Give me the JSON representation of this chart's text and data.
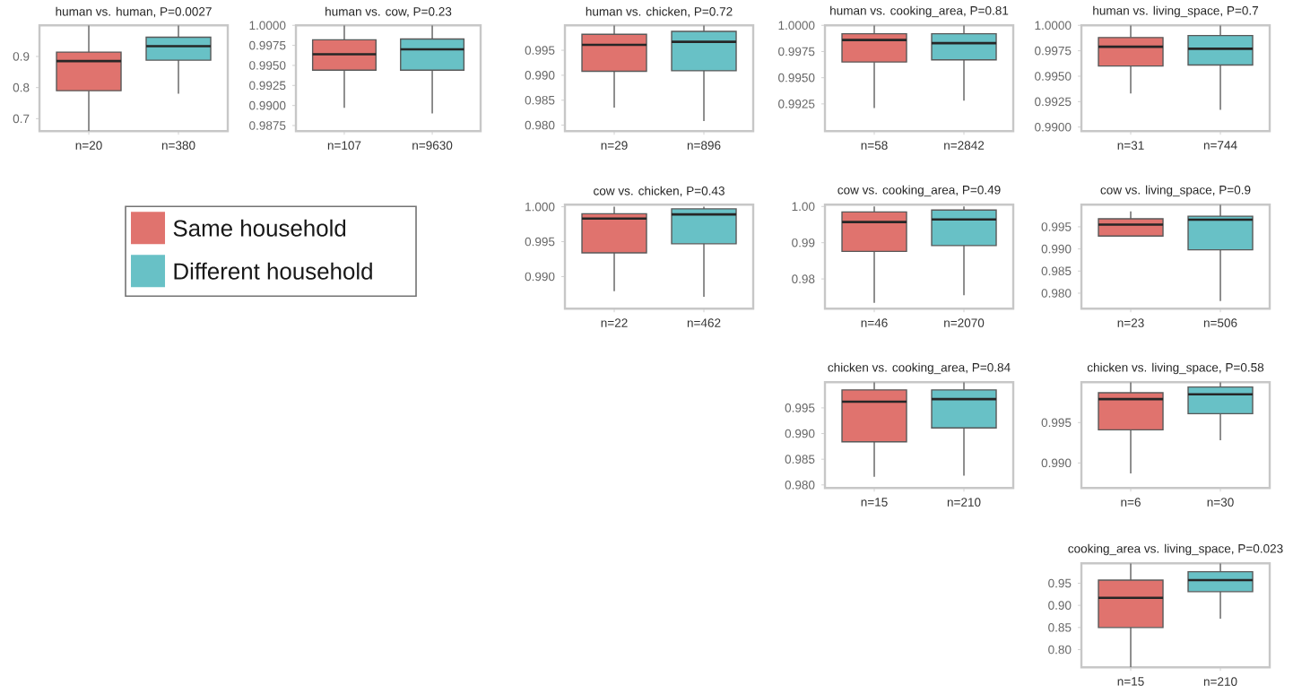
{
  "chart_data": [
    {
      "type": "box",
      "title": "human vs. human, P=0.0027",
      "categories": [
        "n=20",
        "n=380"
      ],
      "ylim": [
        0.66,
        1.0
      ],
      "legend": "bottom",
      "yticks": [
        {
          "value": 0.7,
          "label": "0.7"
        },
        {
          "value": 0.8,
          "label": "0.8"
        },
        {
          "value": 0.9,
          "label": "0.9"
        }
      ],
      "series": [
        {
          "name": "Same household",
          "color": "#e0736e",
          "boxes": [
            {
              "low": 0.66,
              "q1": 0.79,
              "median": 0.885,
              "q3": 0.914,
              "high": 1.0
            },
            null
          ]
        },
        {
          "name": "Different household",
          "color": "#68c1c6",
          "boxes": [
            null,
            {
              "low": 0.78,
              "q1": 0.888,
              "median": 0.933,
              "q3": 0.962,
              "high": 1.0
            }
          ]
        }
      ]
    },
    {
      "type": "box",
      "title": "human vs. cow, P=0.23",
      "categories": [
        "n=107",
        "n=9630"
      ],
      "ylim": [
        0.9868,
        1.0
      ],
      "yticks": [
        {
          "value": 0.9875,
          "label": "0.9875"
        },
        {
          "value": 0.99,
          "label": "0.9900"
        },
        {
          "value": 0.9925,
          "label": "0.9925"
        },
        {
          "value": 0.995,
          "label": "0.9950"
        },
        {
          "value": 0.9975,
          "label": "0.9975"
        },
        {
          "value": 1.0,
          "label": "1.0000"
        }
      ],
      "series": [
        {
          "color": "#e0736e",
          "boxes": [
            {
              "low": 0.9897,
              "q1": 0.9944,
              "median": 0.9964,
              "q3": 0.9982,
              "high": 1.0
            },
            null
          ]
        },
        {
          "color": "#68c1c6",
          "boxes": [
            null,
            {
              "low": 0.989,
              "q1": 0.9944,
              "median": 0.997,
              "q3": 0.9983,
              "high": 1.0
            }
          ]
        }
      ]
    },
    {
      "type": "box",
      "title": "human vs. chicken, P=0.72",
      "categories": [
        "n=29",
        "n=896"
      ],
      "ylim": [
        0.9788,
        1.0
      ],
      "yticks": [
        {
          "value": 0.98,
          "label": "0.980"
        },
        {
          "value": 0.985,
          "label": "0.985"
        },
        {
          "value": 0.99,
          "label": "0.990"
        },
        {
          "value": 0.995,
          "label": "0.995"
        }
      ],
      "series": [
        {
          "color": "#e0736e",
          "boxes": [
            {
              "low": 0.9835,
              "q1": 0.9908,
              "median": 0.9961,
              "q3": 0.9982,
              "high": 1.0
            },
            null
          ]
        },
        {
          "color": "#68c1c6",
          "boxes": [
            null,
            {
              "low": 0.9808,
              "q1": 0.9909,
              "median": 0.9967,
              "q3": 0.9988,
              "high": 1.0
            }
          ]
        }
      ]
    },
    {
      "type": "box",
      "title": "human vs. cooking_area, P=0.81",
      "categories": [
        "n=58",
        "n=2842"
      ],
      "ylim": [
        0.9899,
        1.0
      ],
      "yticks": [
        {
          "value": 0.9925,
          "label": "0.9925"
        },
        {
          "value": 0.995,
          "label": "0.9950"
        },
        {
          "value": 0.9975,
          "label": "0.9975"
        },
        {
          "value": 1.0,
          "label": "1.0000"
        }
      ],
      "series": [
        {
          "color": "#e0736e",
          "boxes": [
            {
              "low": 0.9921,
              "q1": 0.9965,
              "median": 0.9986,
              "q3": 0.9992,
              "high": 1.0
            },
            null
          ]
        },
        {
          "color": "#68c1c6",
          "boxes": [
            null,
            {
              "low": 0.9928,
              "q1": 0.9967,
              "median": 0.9983,
              "q3": 0.9992,
              "high": 1.0
            }
          ]
        }
      ]
    },
    {
      "type": "box",
      "title": "human vs. living_space, P=0.7",
      "categories": [
        "n=31",
        "n=744"
      ],
      "ylim": [
        0.9896,
        1.0
      ],
      "yticks": [
        {
          "value": 0.99,
          "label": "0.9900"
        },
        {
          "value": 0.9925,
          "label": "0.9925"
        },
        {
          "value": 0.995,
          "label": "0.9950"
        },
        {
          "value": 0.9975,
          "label": "0.9975"
        },
        {
          "value": 1.0,
          "label": "1.0000"
        }
      ],
      "series": [
        {
          "color": "#e0736e",
          "boxes": [
            {
              "low": 0.9933,
              "q1": 0.996,
              "median": 0.9979,
              "q3": 0.9988,
              "high": 1.0
            },
            null
          ]
        },
        {
          "color": "#68c1c6",
          "boxes": [
            null,
            {
              "low": 0.9917,
              "q1": 0.9961,
              "median": 0.9977,
              "q3": 0.999,
              "high": 1.0
            }
          ]
        }
      ]
    },
    {
      "type": "box",
      "title": "cow vs. chicken, P=0.43",
      "categories": [
        "n=22",
        "n=462"
      ],
      "ylim": [
        0.9854,
        1.0003
      ],
      "yticks": [
        {
          "value": 0.99,
          "label": "0.990"
        },
        {
          "value": 0.995,
          "label": "0.995"
        },
        {
          "value": 1.0,
          "label": "1.000"
        }
      ],
      "series": [
        {
          "color": "#e0736e",
          "boxes": [
            {
              "low": 0.9879,
              "q1": 0.9934,
              "median": 0.9983,
              "q3": 0.999,
              "high": 1.0
            },
            null
          ]
        },
        {
          "color": "#68c1c6",
          "boxes": [
            null,
            {
              "low": 0.9871,
              "q1": 0.9947,
              "median": 0.9989,
              "q3": 0.9997,
              "high": 1.0
            }
          ]
        }
      ]
    },
    {
      "type": "box",
      "title": "cow vs. cooking_area, P=0.49",
      "categories": [
        "n=46",
        "n=2070"
      ],
      "ylim": [
        0.9718,
        1.0005
      ],
      "yticks": [
        {
          "value": 0.98,
          "label": "0.98"
        },
        {
          "value": 0.99,
          "label": "0.99"
        },
        {
          "value": 1.0,
          "label": "1.00"
        }
      ],
      "series": [
        {
          "color": "#e0736e",
          "boxes": [
            {
              "low": 0.9734,
              "q1": 0.9876,
              "median": 0.9957,
              "q3": 0.9985,
              "high": 1.0
            },
            null
          ]
        },
        {
          "color": "#68c1c6",
          "boxes": [
            null,
            {
              "low": 0.9755,
              "q1": 0.9892,
              "median": 0.9964,
              "q3": 0.999,
              "high": 1.0
            }
          ]
        }
      ]
    },
    {
      "type": "box",
      "title": "cow vs. living_space, P=0.9",
      "categories": [
        "n=23",
        "n=506"
      ],
      "ylim": [
        0.9765,
        1.0
      ],
      "yticks": [
        {
          "value": 0.98,
          "label": "0.980"
        },
        {
          "value": 0.985,
          "label": "0.985"
        },
        {
          "value": 0.99,
          "label": "0.990"
        },
        {
          "value": 0.995,
          "label": "0.995"
        }
      ],
      "series": [
        {
          "color": "#e0736e",
          "boxes": [
            {
              "low": 0.9928,
              "q1": 0.9929,
              "median": 0.9955,
              "q3": 0.9968,
              "high": 0.9985
            },
            null
          ]
        },
        {
          "color": "#68c1c6",
          "boxes": [
            null,
            {
              "low": 0.9782,
              "q1": 0.9898,
              "median": 0.9966,
              "q3": 0.9974,
              "high": 1.0
            }
          ]
        }
      ]
    },
    {
      "type": "box",
      "title": "chicken vs. cooking_area, P=0.84",
      "categories": [
        "n=15",
        "n=210"
      ],
      "ylim": [
        0.9794,
        1.0
      ],
      "yticks": [
        {
          "value": 0.98,
          "label": "0.980"
        },
        {
          "value": 0.985,
          "label": "0.985"
        },
        {
          "value": 0.99,
          "label": "0.990"
        },
        {
          "value": 0.995,
          "label": "0.995"
        }
      ],
      "series": [
        {
          "color": "#e0736e",
          "boxes": [
            {
              "low": 0.9816,
              "q1": 0.9884,
              "median": 0.9962,
              "q3": 0.9985,
              "high": 1.0
            },
            null
          ]
        },
        {
          "color": "#68c1c6",
          "boxes": [
            null,
            {
              "low": 0.9818,
              "q1": 0.9911,
              "median": 0.9967,
              "q3": 0.9985,
              "high": 1.0
            }
          ]
        }
      ]
    },
    {
      "type": "box",
      "title": "chicken vs. living_space, P=0.58",
      "categories": [
        "n=6",
        "n=30"
      ],
      "ylim": [
        0.9869,
        1.0
      ],
      "yticks": [
        {
          "value": 0.99,
          "label": "0.990"
        },
        {
          "value": 0.995,
          "label": "0.995"
        }
      ],
      "series": [
        {
          "color": "#e0736e",
          "boxes": [
            {
              "low": 0.9887,
              "q1": 0.9941,
              "median": 0.9979,
              "q3": 0.9987,
              "high": 1.0
            },
            null
          ]
        },
        {
          "color": "#68c1c6",
          "boxes": [
            null,
            {
              "low": 0.9928,
              "q1": 0.9961,
              "median": 0.9985,
              "q3": 0.9994,
              "high": 1.0
            }
          ]
        }
      ]
    },
    {
      "type": "box",
      "title": "cooking_area vs. living_space, P=0.023",
      "categories": [
        "n=15",
        "n=210"
      ],
      "ylim": [
        0.76,
        0.995
      ],
      "yticks": [
        {
          "value": 0.8,
          "label": "0.80"
        },
        {
          "value": 0.85,
          "label": "0.85"
        },
        {
          "value": 0.9,
          "label": "0.90"
        },
        {
          "value": 0.95,
          "label": "0.95"
        }
      ],
      "series": [
        {
          "color": "#e0736e",
          "boxes": [
            {
              "low": 0.76,
              "q1": 0.85,
              "median": 0.917,
              "q3": 0.957,
              "high": 0.995
            },
            null
          ]
        },
        {
          "color": "#68c1c6",
          "boxes": [
            null,
            {
              "low": 0.87,
              "q1": 0.931,
              "median": 0.957,
              "q3": 0.976,
              "high": 0.995
            }
          ]
        }
      ]
    }
  ]
}
